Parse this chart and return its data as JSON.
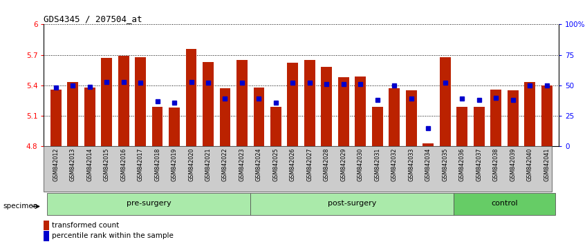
{
  "title": "GDS4345 / 207504_at",
  "samples": [
    "GSM842012",
    "GSM842013",
    "GSM842014",
    "GSM842015",
    "GSM842016",
    "GSM842017",
    "GSM842018",
    "GSM842019",
    "GSM842020",
    "GSM842021",
    "GSM842022",
    "GSM842023",
    "GSM842024",
    "GSM842025",
    "GSM842026",
    "GSM842027",
    "GSM842028",
    "GSM842029",
    "GSM842030",
    "GSM842031",
    "GSM842032",
    "GSM842033",
    "GSM842034",
    "GSM842035",
    "GSM842036",
    "GSM842037",
    "GSM842038",
    "GSM842039",
    "GSM842040",
    "GSM842041"
  ],
  "bar_values": [
    5.36,
    5.43,
    5.38,
    5.67,
    5.69,
    5.68,
    5.19,
    5.18,
    5.76,
    5.63,
    5.37,
    5.65,
    5.38,
    5.19,
    5.62,
    5.65,
    5.58,
    5.48,
    5.49,
    5.19,
    5.37,
    5.35,
    4.83,
    5.68,
    5.19,
    5.19,
    5.36,
    5.35,
    5.43,
    5.4
  ],
  "percentile_values": [
    48,
    50,
    49,
    53,
    53,
    52,
    37,
    36,
    53,
    52,
    39,
    52,
    39,
    36,
    52,
    52,
    51,
    51,
    51,
    38,
    50,
    39,
    15,
    52,
    39,
    38,
    40,
    38,
    50,
    50
  ],
  "ymin": 4.8,
  "ymax": 6.0,
  "yticks": [
    4.8,
    5.1,
    5.4,
    5.7,
    6.0
  ],
  "ytick_labels": [
    "4.8",
    "5.1",
    "5.4",
    "5.7",
    "6"
  ],
  "right_yticks": [
    0,
    25,
    50,
    75,
    100
  ],
  "right_ytick_labels": [
    "0",
    "25",
    "50",
    "75",
    "100%"
  ],
  "bar_color": "#bb2200",
  "dot_color": "#0000cc",
  "group_defs": [
    {
      "start": 0,
      "end": 11,
      "label": "pre-surgery",
      "color": "#aaeaaa"
    },
    {
      "start": 12,
      "end": 23,
      "label": "post-surgery",
      "color": "#aaeaaa"
    },
    {
      "start": 24,
      "end": 29,
      "label": "control",
      "color": "#66cc66"
    }
  ],
  "legend_items": [
    {
      "label": "transformed count",
      "color": "#bb2200",
      "marker": "s"
    },
    {
      "label": "percentile rank within the sample",
      "color": "#0000cc",
      "marker": "s"
    }
  ]
}
